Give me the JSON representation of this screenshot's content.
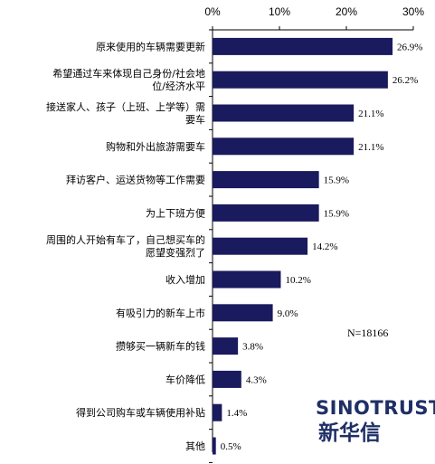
{
  "chart_data": {
    "type": "bar",
    "orientation": "horizontal",
    "categories": [
      [
        "原来使用的车辆需要更新"
      ],
      [
        "希望通过车来体现自己身份/社会地",
        "位/经济水平"
      ],
      [
        "接送家人、孩子（上班、上学等）需",
        "要车"
      ],
      [
        "购物和外出旅游需要车"
      ],
      [
        "拜访客户、运送货物等工作需要"
      ],
      [
        "为上下班方便"
      ],
      [
        "周围的人开始有车了，自己想买车的",
        "愿望变强烈了"
      ],
      [
        "收入增加"
      ],
      [
        "有吸引力的新车上市"
      ],
      [
        "攒够买一辆新车的钱"
      ],
      [
        "车价降低"
      ],
      [
        "得到公司购车或车辆使用补贴"
      ],
      [
        "其他"
      ]
    ],
    "values": [
      26.9,
      26.2,
      21.1,
      21.1,
      15.9,
      15.9,
      14.2,
      10.2,
      9.0,
      3.8,
      4.3,
      1.4,
      0.5
    ],
    "value_labels": [
      "26.9%",
      "26.2%",
      "21.1%",
      "21.1%",
      "15.9%",
      "15.9%",
      "14.2%",
      "10.2%",
      "9.0%",
      "3.8%",
      "4.3%",
      "1.4%",
      "0.5%"
    ],
    "x_ticks": [
      "0%",
      "10%",
      "20%",
      "30%"
    ],
    "xlim": [
      0,
      30
    ],
    "axis_position": "top",
    "grid": false,
    "bar_color": "#1a1a5e",
    "annotation": "N=18166"
  },
  "logo": {
    "english": "SINOTRUST",
    "chinese": "新华信",
    "color": "#1f2f66"
  }
}
